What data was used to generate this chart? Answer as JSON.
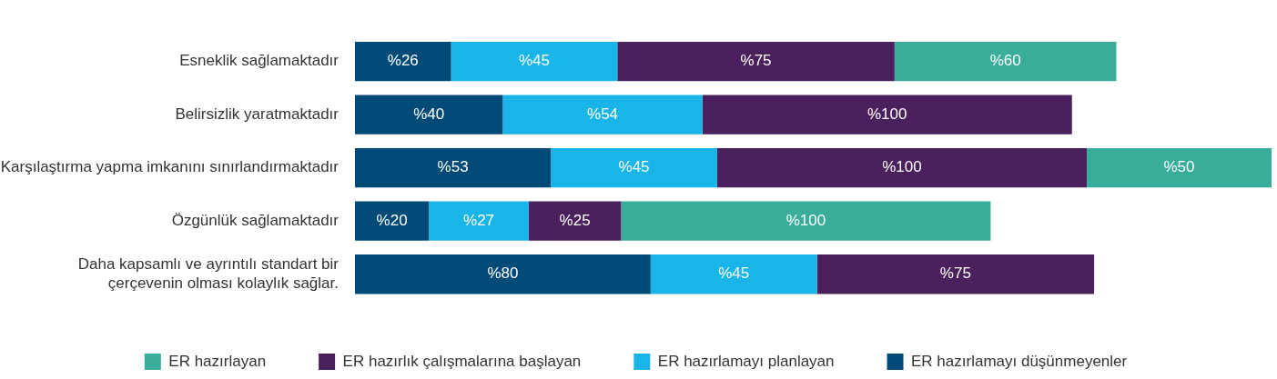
{
  "chart_data": {
    "type": "bar",
    "orientation": "horizontal",
    "stacked": true,
    "legend": "bottom",
    "grid": false,
    "tick_labels": "y",
    "categories": [
      "Esneklik sağlamaktadır",
      "Belirsizlik yaratmaktadır",
      "Karşılaştırma yapma imkanını sınırlandırmaktadır",
      "Özgünlük sağlamaktadır",
      "Daha kapsamlı ve ayrıntılı standart bir çerçevenin olması kolaylık sağlar."
    ],
    "series": [
      {
        "name": "ER hazırlamayı düşünmeyenler",
        "color": "#004a78",
        "values": [
          26,
          40,
          53,
          20,
          80
        ],
        "value_labels": [
          "%26",
          "%40",
          "%53",
          "%20",
          "%80"
        ]
      },
      {
        "name": "ER hazırlamayı planlayan",
        "color": "#1ab5e8",
        "values": [
          45,
          54,
          45,
          27,
          45
        ],
        "value_labels": [
          "%45",
          "%54",
          "%45",
          "%27",
          "%45"
        ]
      },
      {
        "name": "ER hazırlık çalışmalarına başlayan",
        "color": "#4b215d",
        "values": [
          75,
          100,
          100,
          25,
          75
        ],
        "value_labels": [
          "%75",
          "%100",
          "%100",
          "%25",
          "%75"
        ]
      },
      {
        "name": "ER hazırlayan",
        "color": "#38ae9a",
        "values": [
          60,
          null,
          50,
          100,
          null
        ],
        "value_labels": [
          "%60",
          null,
          "%50",
          "%100",
          null
        ]
      }
    ]
  }
}
